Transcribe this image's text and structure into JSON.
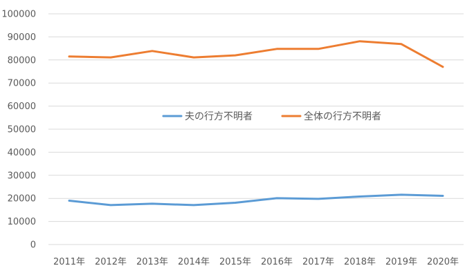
{
  "chart_data": {
    "type": "line",
    "categories": [
      "2011年",
      "2012年",
      "2013年",
      "2014年",
      "2015年",
      "2016年",
      "2017年",
      "2018年",
      "2019年",
      "2020年"
    ],
    "series": [
      {
        "name": "夫の行方不明者",
        "color": "#5b9bd5",
        "values": [
          19000,
          17100,
          17700,
          17100,
          18100,
          20100,
          19800,
          20800,
          21600,
          21100
        ]
      },
      {
        "name": "全体の行方不明者",
        "color": "#ed7d31",
        "values": [
          81500,
          81100,
          83900,
          81100,
          82000,
          84800,
          84800,
          88100,
          86900,
          77000
        ]
      }
    ],
    "yticks": [
      "0",
      "10000",
      "20000",
      "30000",
      "40000",
      "50000",
      "60000",
      "70000",
      "80000",
      "90000",
      "100000"
    ],
    "ylim": [
      0,
      100000
    ],
    "grid": true,
    "legend_position": "center"
  }
}
